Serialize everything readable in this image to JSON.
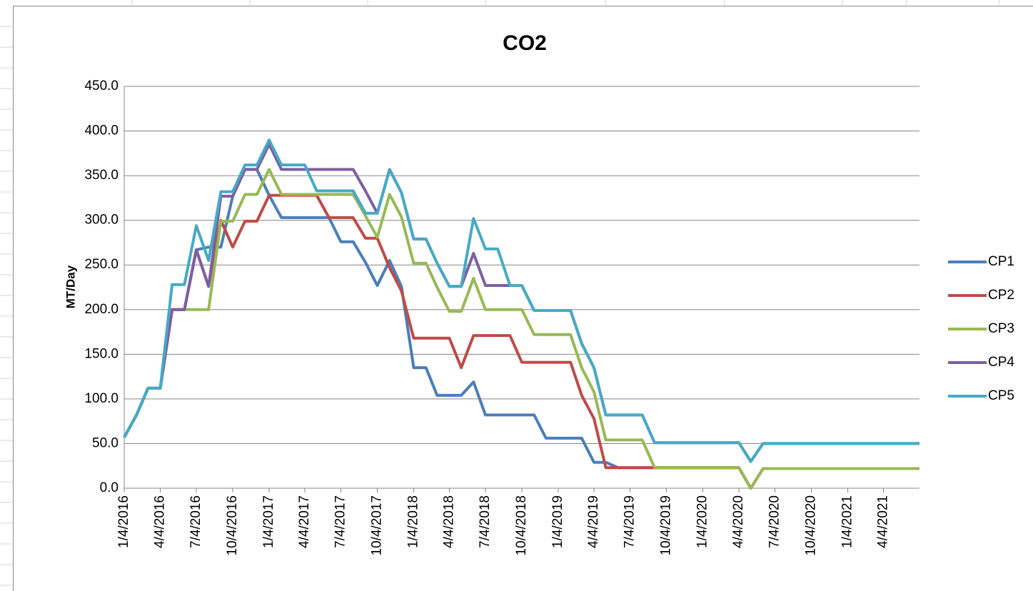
{
  "chart_data": {
    "type": "line",
    "title": "CO2",
    "y_label": "MT/Day",
    "x": [
      "1/4/2016",
      "2/4/2016",
      "3/4/2016",
      "4/4/2016",
      "5/4/2016",
      "6/4/2016",
      "7/4/2016",
      "8/4/2016",
      "9/4/2016",
      "10/4/2016",
      "11/4/2016",
      "12/4/2016",
      "1/4/2017",
      "2/4/2017",
      "3/4/2017",
      "4/4/2017",
      "5/4/2017",
      "6/4/2017",
      "7/4/2017",
      "8/4/2017",
      "9/4/2017",
      "10/4/2017",
      "11/4/2017",
      "12/4/2017",
      "1/4/2018",
      "2/4/2018",
      "3/4/2018",
      "4/4/2018",
      "5/4/2018",
      "6/4/2018",
      "7/4/2018",
      "8/4/2018",
      "9/4/2018",
      "10/4/2018",
      "11/4/2018",
      "12/4/2018",
      "1/4/2019",
      "2/4/2019",
      "3/4/2019",
      "4/4/2019",
      "5/4/2019",
      "6/4/2019",
      "7/4/2019",
      "8/4/2019",
      "9/4/2019",
      "10/4/2019",
      "11/4/2019",
      "12/4/2019",
      "1/4/2020",
      "2/4/2020",
      "3/4/2020",
      "4/4/2020",
      "5/4/2020",
      "6/4/2020",
      "7/4/2020",
      "8/4/2020",
      "9/4/2020",
      "10/4/2020",
      "11/4/2020",
      "12/4/2020",
      "1/4/2021",
      "2/4/2021",
      "3/4/2021",
      "4/4/2021",
      "5/4/2021",
      "6/4/2021",
      "7/4/2021"
    ],
    "series": [
      {
        "name": "CP1",
        "color": "#4a7ebb",
        "values": [
          57,
          82,
          112,
          112,
          200,
          200,
          267,
          270,
          270,
          327,
          357,
          357,
          328,
          303,
          303,
          303,
          303,
          303,
          276,
          276,
          253,
          227,
          255,
          226,
          135,
          135,
          104,
          104,
          104,
          119,
          82,
          82,
          82,
          82,
          82,
          56,
          56,
          56,
          56,
          29,
          29,
          23,
          23,
          23,
          23,
          23,
          23,
          23,
          23,
          23,
          23,
          23,
          0,
          22,
          22,
          22,
          22,
          22,
          22,
          22,
          22,
          22,
          22,
          22,
          22,
          22,
          22
        ]
      },
      {
        "name": "CP2",
        "color": "#be4b48",
        "values": [
          57,
          82,
          112,
          112,
          200,
          200,
          267,
          226,
          300,
          270,
          299,
          299,
          328,
          328,
          328,
          328,
          328,
          303,
          303,
          303,
          280,
          280,
          247,
          221,
          168,
          168,
          168,
          168,
          135,
          171,
          171,
          171,
          171,
          141,
          141,
          141,
          141,
          141,
          104,
          78,
          23,
          23,
          23,
          23,
          23,
          23,
          23,
          23,
          23,
          23,
          23,
          23,
          0,
          22,
          22,
          22,
          22,
          22,
          22,
          22,
          22,
          22,
          22,
          22,
          22,
          22,
          22
        ]
      },
      {
        "name": "CP3",
        "color": "#98b954",
        "values": [
          57,
          82,
          112,
          112,
          200,
          200,
          200,
          200,
          299,
          299,
          329,
          329,
          357,
          329,
          329,
          329,
          329,
          329,
          329,
          329,
          305,
          281,
          329,
          304,
          252,
          252,
          225,
          198,
          198,
          235,
          200,
          200,
          200,
          200,
          172,
          172,
          172,
          172,
          135,
          108,
          54,
          54,
          54,
          54,
          23,
          23,
          23,
          23,
          23,
          23,
          23,
          23,
          0,
          22,
          22,
          22,
          22,
          22,
          22,
          22,
          22,
          22,
          22,
          22,
          22,
          22,
          22
        ]
      },
      {
        "name": "CP4",
        "color": "#7d60a0",
        "values": [
          57,
          82,
          112,
          112,
          200,
          200,
          267,
          226,
          327,
          327,
          357,
          357,
          385,
          357,
          357,
          357,
          357,
          357,
          357,
          357,
          333,
          308,
          357,
          331,
          279,
          279,
          252,
          226,
          226,
          263,
          227,
          227,
          227,
          227,
          199,
          199,
          199,
          199,
          162,
          135,
          82,
          82,
          82,
          82,
          51,
          51,
          51,
          51,
          51,
          51,
          51,
          51,
          30,
          50,
          50,
          50,
          50,
          50,
          50,
          50,
          50,
          50,
          50,
          50,
          50,
          50,
          50
        ]
      },
      {
        "name": "CP5",
        "color": "#46aac5",
        "values": [
          57,
          82,
          112,
          112,
          228,
          228,
          294,
          255,
          332,
          332,
          362,
          362,
          390,
          362,
          362,
          362,
          333,
          333,
          333,
          333,
          308,
          308,
          357,
          331,
          279,
          279,
          252,
          226,
          226,
          302,
          268,
          268,
          227,
          227,
          199,
          199,
          199,
          199,
          162,
          135,
          82,
          82,
          82,
          82,
          51,
          51,
          51,
          51,
          51,
          51,
          51,
          51,
          30,
          50,
          50,
          50,
          50,
          50,
          50,
          50,
          50,
          50,
          50,
          50,
          50,
          50,
          50
        ]
      }
    ],
    "xlim": [
      "1/4/2016",
      "7/4/2021"
    ],
    "xticks": [
      "1/4/2016",
      "4/4/2016",
      "7/4/2016",
      "10/4/2016",
      "1/4/2017",
      "4/4/2017",
      "7/4/2017",
      "10/4/2017",
      "1/4/2018",
      "4/4/2018",
      "7/4/2018",
      "10/4/2018",
      "1/4/2019",
      "4/4/2019",
      "7/4/2019",
      "10/4/2019",
      "1/4/2020",
      "4/4/2020",
      "7/4/2020",
      "10/4/2020",
      "1/4/2021",
      "4/4/2021"
    ],
    "ylim": [
      0,
      450
    ],
    "yticks": [
      {
        "value": 0,
        "label": "0.0"
      },
      {
        "value": 50,
        "label": "50.0"
      },
      {
        "value": 100,
        "label": "100.0"
      },
      {
        "value": 150,
        "label": "150.0"
      },
      {
        "value": 200,
        "label": "200.0"
      },
      {
        "value": 250,
        "label": "250.0"
      },
      {
        "value": 300,
        "label": "300.0"
      },
      {
        "value": 350,
        "label": "350.0"
      },
      {
        "value": 400,
        "label": "400.0"
      },
      {
        "value": 450,
        "label": "450.0"
      }
    ],
    "grid": true,
    "legend": "right"
  }
}
